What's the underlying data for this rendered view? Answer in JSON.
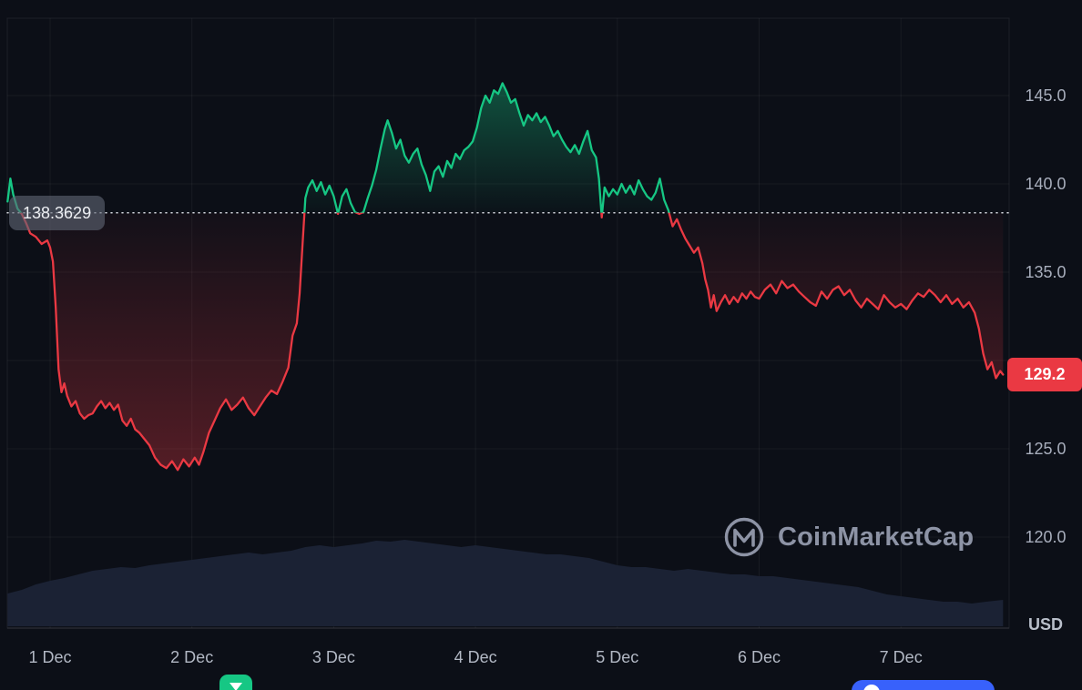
{
  "chart_data": {
    "type": "line",
    "unit": "USD",
    "open_price": 138.3629,
    "open_price_label": "138.3629",
    "current_price": 129.2,
    "current_price_label": "129.2",
    "ylim": [
      115,
      149.4
    ],
    "grid": true,
    "legend": false,
    "y_ticks": [
      {
        "value": 145,
        "label": "145.0"
      },
      {
        "value": 140,
        "label": "140.0"
      },
      {
        "value": 135,
        "label": "135.0"
      },
      {
        "value": 125,
        "label": "125.0"
      },
      {
        "value": 120,
        "label": "120.0"
      }
    ],
    "grid_y": [
      120,
      125,
      130,
      135,
      140,
      145
    ],
    "x_ticks": [
      {
        "day": 1,
        "label": "1 Dec"
      },
      {
        "day": 2,
        "label": "2 Dec"
      },
      {
        "day": 3,
        "label": "3 Dec"
      },
      {
        "day": 4,
        "label": "4 Dec"
      },
      {
        "day": 5,
        "label": "5 Dec"
      },
      {
        "day": 6,
        "label": "6 Dec"
      },
      {
        "day": 7,
        "label": "7 Dec"
      }
    ],
    "colors": {
      "up": "#16c784",
      "down": "#ea3943",
      "open_line": "#e8ebf2",
      "volume": "#1b2234",
      "background": "#0c0f17",
      "axis_text": "#a8aebc",
      "badge_bg": "#ea3943",
      "pill_bg": "#5f6574"
    },
    "series": [
      {
        "name": "price",
        "points": [
          [
            0.7,
            139.0
          ],
          [
            0.72,
            140.3
          ],
          [
            0.74,
            139.4
          ],
          [
            0.77,
            138.6
          ],
          [
            0.8,
            138.3
          ],
          [
            0.83,
            137.8
          ],
          [
            0.86,
            137.2
          ],
          [
            0.9,
            137.0
          ],
          [
            0.94,
            136.6
          ],
          [
            0.98,
            136.8
          ],
          [
            1.0,
            136.4
          ],
          [
            1.02,
            135.6
          ],
          [
            1.04,
            133.0
          ],
          [
            1.06,
            129.5
          ],
          [
            1.08,
            128.2
          ],
          [
            1.1,
            128.7
          ],
          [
            1.12,
            128.0
          ],
          [
            1.15,
            127.4
          ],
          [
            1.18,
            127.7
          ],
          [
            1.21,
            127.0
          ],
          [
            1.24,
            126.7
          ],
          [
            1.27,
            126.9
          ],
          [
            1.3,
            127.0
          ],
          [
            1.33,
            127.4
          ],
          [
            1.36,
            127.7
          ],
          [
            1.39,
            127.3
          ],
          [
            1.42,
            127.6
          ],
          [
            1.45,
            127.2
          ],
          [
            1.48,
            127.5
          ],
          [
            1.51,
            126.6
          ],
          [
            1.54,
            126.3
          ],
          [
            1.57,
            126.7
          ],
          [
            1.6,
            126.1
          ],
          [
            1.63,
            125.9
          ],
          [
            1.66,
            125.6
          ],
          [
            1.7,
            125.2
          ],
          [
            1.74,
            124.5
          ],
          [
            1.78,
            124.1
          ],
          [
            1.82,
            123.9
          ],
          [
            1.86,
            124.3
          ],
          [
            1.9,
            123.8
          ],
          [
            1.94,
            124.4
          ],
          [
            1.98,
            124.0
          ],
          [
            2.02,
            124.5
          ],
          [
            2.05,
            124.1
          ],
          [
            2.08,
            124.8
          ],
          [
            2.12,
            125.9
          ],
          [
            2.16,
            126.6
          ],
          [
            2.2,
            127.3
          ],
          [
            2.24,
            127.8
          ],
          [
            2.28,
            127.2
          ],
          [
            2.32,
            127.5
          ],
          [
            2.36,
            127.9
          ],
          [
            2.4,
            127.3
          ],
          [
            2.44,
            126.9
          ],
          [
            2.48,
            127.4
          ],
          [
            2.52,
            127.9
          ],
          [
            2.56,
            128.3
          ],
          [
            2.6,
            128.1
          ],
          [
            2.64,
            128.8
          ],
          [
            2.68,
            129.6
          ],
          [
            2.71,
            131.4
          ],
          [
            2.74,
            132.1
          ],
          [
            2.76,
            133.8
          ],
          [
            2.78,
            136.5
          ],
          [
            2.8,
            139.2
          ],
          [
            2.82,
            139.8
          ],
          [
            2.85,
            140.2
          ],
          [
            2.88,
            139.6
          ],
          [
            2.91,
            140.1
          ],
          [
            2.94,
            139.4
          ],
          [
            2.97,
            139.9
          ],
          [
            3.0,
            139.3
          ],
          [
            3.03,
            138.3
          ],
          [
            3.06,
            139.3
          ],
          [
            3.09,
            139.7
          ],
          [
            3.12,
            138.9
          ],
          [
            3.15,
            138.4
          ],
          [
            3.18,
            138.3
          ],
          [
            3.21,
            138.4
          ],
          [
            3.24,
            139.2
          ],
          [
            3.27,
            139.9
          ],
          [
            3.3,
            140.8
          ],
          [
            3.33,
            142.0
          ],
          [
            3.36,
            143.1
          ],
          [
            3.38,
            143.6
          ],
          [
            3.41,
            142.9
          ],
          [
            3.44,
            142.0
          ],
          [
            3.47,
            142.5
          ],
          [
            3.5,
            141.6
          ],
          [
            3.53,
            141.2
          ],
          [
            3.56,
            141.7
          ],
          [
            3.59,
            142.0
          ],
          [
            3.62,
            141.1
          ],
          [
            3.65,
            140.5
          ],
          [
            3.68,
            139.6
          ],
          [
            3.71,
            140.7
          ],
          [
            3.74,
            141.0
          ],
          [
            3.77,
            140.4
          ],
          [
            3.8,
            141.3
          ],
          [
            3.83,
            140.9
          ],
          [
            3.86,
            141.7
          ],
          [
            3.89,
            141.4
          ],
          [
            3.92,
            141.9
          ],
          [
            3.95,
            142.1
          ],
          [
            3.98,
            142.4
          ],
          [
            4.01,
            143.2
          ],
          [
            4.04,
            144.3
          ],
          [
            4.07,
            145.0
          ],
          [
            4.1,
            144.6
          ],
          [
            4.13,
            145.3
          ],
          [
            4.16,
            145.1
          ],
          [
            4.19,
            145.7
          ],
          [
            4.22,
            145.2
          ],
          [
            4.25,
            144.6
          ],
          [
            4.28,
            144.8
          ],
          [
            4.31,
            144.0
          ],
          [
            4.34,
            143.3
          ],
          [
            4.37,
            143.9
          ],
          [
            4.4,
            143.6
          ],
          [
            4.43,
            144.0
          ],
          [
            4.46,
            143.5
          ],
          [
            4.49,
            143.8
          ],
          [
            4.52,
            143.3
          ],
          [
            4.55,
            142.7
          ],
          [
            4.58,
            143.0
          ],
          [
            4.61,
            142.5
          ],
          [
            4.64,
            142.1
          ],
          [
            4.67,
            141.8
          ],
          [
            4.7,
            142.2
          ],
          [
            4.73,
            141.7
          ],
          [
            4.76,
            142.4
          ],
          [
            4.79,
            143.0
          ],
          [
            4.82,
            141.9
          ],
          [
            4.85,
            141.5
          ],
          [
            4.87,
            140.3
          ],
          [
            4.89,
            138.1
          ],
          [
            4.91,
            139.8
          ],
          [
            4.94,
            139.3
          ],
          [
            4.97,
            139.7
          ],
          [
            5.0,
            139.4
          ],
          [
            5.03,
            140.0
          ],
          [
            5.06,
            139.5
          ],
          [
            5.09,
            139.9
          ],
          [
            5.12,
            139.4
          ],
          [
            5.15,
            140.2
          ],
          [
            5.18,
            139.7
          ],
          [
            5.21,
            139.3
          ],
          [
            5.24,
            139.1
          ],
          [
            5.27,
            139.5
          ],
          [
            5.3,
            140.3
          ],
          [
            5.33,
            139.1
          ],
          [
            5.36,
            138.5
          ],
          [
            5.39,
            137.6
          ],
          [
            5.42,
            138.0
          ],
          [
            5.45,
            137.4
          ],
          [
            5.48,
            136.9
          ],
          [
            5.51,
            136.5
          ],
          [
            5.54,
            136.1
          ],
          [
            5.57,
            136.4
          ],
          [
            5.6,
            135.5
          ],
          [
            5.62,
            134.6
          ],
          [
            5.64,
            134.0
          ],
          [
            5.66,
            133.0
          ],
          [
            5.68,
            133.7
          ],
          [
            5.7,
            132.8
          ],
          [
            5.73,
            133.3
          ],
          [
            5.76,
            133.7
          ],
          [
            5.79,
            133.2
          ],
          [
            5.82,
            133.6
          ],
          [
            5.85,
            133.3
          ],
          [
            5.88,
            133.8
          ],
          [
            5.91,
            133.5
          ],
          [
            5.94,
            133.9
          ],
          [
            5.97,
            133.6
          ],
          [
            6.0,
            133.5
          ],
          [
            6.04,
            134.0
          ],
          [
            6.08,
            134.3
          ],
          [
            6.12,
            133.8
          ],
          [
            6.16,
            134.5
          ],
          [
            6.2,
            134.1
          ],
          [
            6.24,
            134.3
          ],
          [
            6.28,
            133.9
          ],
          [
            6.32,
            133.6
          ],
          [
            6.36,
            133.3
          ],
          [
            6.4,
            133.1
          ],
          [
            6.44,
            133.9
          ],
          [
            6.48,
            133.5
          ],
          [
            6.52,
            134.0
          ],
          [
            6.56,
            134.2
          ],
          [
            6.6,
            133.7
          ],
          [
            6.64,
            134.0
          ],
          [
            6.68,
            133.4
          ],
          [
            6.72,
            133.0
          ],
          [
            6.76,
            133.5
          ],
          [
            6.8,
            133.2
          ],
          [
            6.84,
            132.9
          ],
          [
            6.88,
            133.7
          ],
          [
            6.92,
            133.3
          ],
          [
            6.96,
            133.0
          ],
          [
            7.0,
            133.2
          ],
          [
            7.04,
            132.9
          ],
          [
            7.08,
            133.4
          ],
          [
            7.12,
            133.8
          ],
          [
            7.16,
            133.6
          ],
          [
            7.2,
            134.0
          ],
          [
            7.24,
            133.7
          ],
          [
            7.28,
            133.3
          ],
          [
            7.32,
            133.7
          ],
          [
            7.36,
            133.2
          ],
          [
            7.4,
            133.5
          ],
          [
            7.44,
            133.0
          ],
          [
            7.48,
            133.3
          ],
          [
            7.52,
            132.7
          ],
          [
            7.55,
            131.8
          ],
          [
            7.58,
            130.4
          ],
          [
            7.61,
            129.5
          ],
          [
            7.64,
            129.9
          ],
          [
            7.67,
            129.0
          ],
          [
            7.7,
            129.4
          ],
          [
            7.72,
            129.2
          ]
        ]
      }
    ],
    "volume_series": {
      "name": "volume",
      "units": "relative (0-100)",
      "points": [
        [
          0.7,
          36
        ],
        [
          0.8,
          40
        ],
        [
          0.9,
          46
        ],
        [
          1.0,
          50
        ],
        [
          1.1,
          53
        ],
        [
          1.2,
          57
        ],
        [
          1.3,
          61
        ],
        [
          1.4,
          63
        ],
        [
          1.5,
          65
        ],
        [
          1.6,
          64
        ],
        [
          1.7,
          67
        ],
        [
          1.8,
          69
        ],
        [
          1.9,
          71
        ],
        [
          2.0,
          73
        ],
        [
          2.1,
          75
        ],
        [
          2.2,
          77
        ],
        [
          2.3,
          79
        ],
        [
          2.4,
          81
        ],
        [
          2.5,
          79
        ],
        [
          2.6,
          81
        ],
        [
          2.7,
          83
        ],
        [
          2.8,
          87
        ],
        [
          2.9,
          89
        ],
        [
          3.0,
          87
        ],
        [
          3.1,
          89
        ],
        [
          3.2,
          91
        ],
        [
          3.3,
          94
        ],
        [
          3.4,
          93
        ],
        [
          3.5,
          95
        ],
        [
          3.6,
          93
        ],
        [
          3.7,
          91
        ],
        [
          3.8,
          89
        ],
        [
          3.9,
          87
        ],
        [
          4.0,
          89
        ],
        [
          4.1,
          87
        ],
        [
          4.2,
          85
        ],
        [
          4.3,
          83
        ],
        [
          4.4,
          81
        ],
        [
          4.5,
          79
        ],
        [
          4.6,
          79
        ],
        [
          4.7,
          77
        ],
        [
          4.8,
          75
        ],
        [
          4.9,
          71
        ],
        [
          5.0,
          67
        ],
        [
          5.1,
          65
        ],
        [
          5.2,
          65
        ],
        [
          5.3,
          63
        ],
        [
          5.4,
          61
        ],
        [
          5.5,
          63
        ],
        [
          5.6,
          61
        ],
        [
          5.7,
          59
        ],
        [
          5.8,
          57
        ],
        [
          5.9,
          57
        ],
        [
          6.0,
          55
        ],
        [
          6.1,
          55
        ],
        [
          6.2,
          53
        ],
        [
          6.3,
          51
        ],
        [
          6.4,
          49
        ],
        [
          6.5,
          47
        ],
        [
          6.6,
          45
        ],
        [
          6.7,
          43
        ],
        [
          6.8,
          39
        ],
        [
          6.9,
          35
        ],
        [
          7.0,
          33
        ],
        [
          7.1,
          31
        ],
        [
          7.2,
          29
        ],
        [
          7.3,
          27
        ],
        [
          7.4,
          27
        ],
        [
          7.5,
          25
        ],
        [
          7.6,
          27
        ],
        [
          7.72,
          29
        ]
      ]
    }
  },
  "watermark": {
    "brand": "CoinMarketCap"
  }
}
